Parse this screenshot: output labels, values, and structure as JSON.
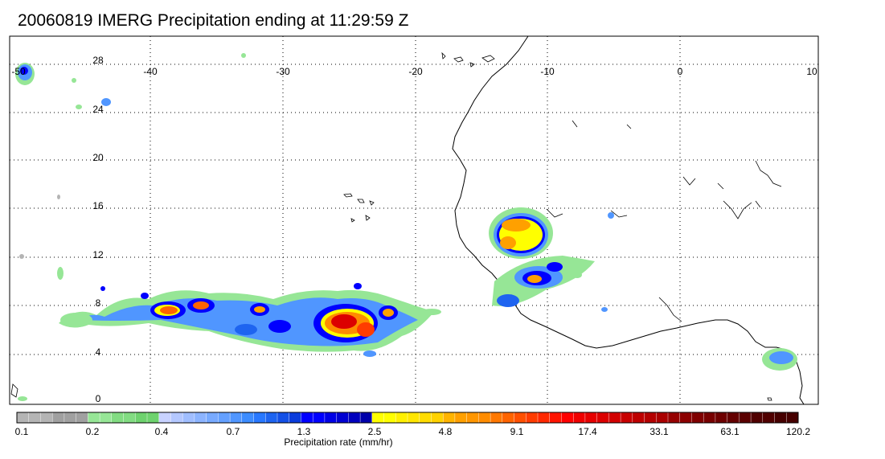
{
  "title": "20060819 IMERG Precipitation ending at 11:29:59 Z",
  "map": {
    "lon_ticks": [
      "-50",
      "-40",
      "-30",
      "-20",
      "-10",
      "0",
      "10"
    ],
    "lat_ticks": [
      "28",
      "24",
      "20",
      "16",
      "12",
      "8",
      "4",
      "0"
    ],
    "lon_range": [
      -50,
      10
    ],
    "lat_range": [
      -0.5,
      30
    ],
    "grid": true,
    "grid_style": "dotted"
  },
  "colorbar": {
    "label": "Precipitation rate (mm/hr)",
    "tick_labels": [
      "0.1",
      "0.2",
      "0.4",
      "0.7",
      "1.3",
      "2.5",
      "4.8",
      "9.1",
      "17.4",
      "33.1",
      "63.1",
      "120.2"
    ],
    "colors": [
      "#b4b4b4",
      "#b4b4b4",
      "#b4b4b4",
      "#a0a0a0",
      "#a0a0a0",
      "#a0a0a0",
      "#96e696",
      "#96e696",
      "#82dc82",
      "#82dc82",
      "#6ed26e",
      "#6ed26e",
      "#c8d2ff",
      "#b4c8ff",
      "#a0beff",
      "#8cb4ff",
      "#78aaff",
      "#64a0ff",
      "#5096ff",
      "#3c8cff",
      "#2878ff",
      "#1e64f0",
      "#1450e6",
      "#0a3cdc",
      "#0000ff",
      "#0000ff",
      "#0000e6",
      "#0000d2",
      "#0000be",
      "#0000aa",
      "#ffff00",
      "#ffff00",
      "#fff000",
      "#ffe600",
      "#ffdc00",
      "#ffd200",
      "#ffb400",
      "#ffa000",
      "#ff9600",
      "#ff8c00",
      "#ff7800",
      "#ff6400",
      "#ff5000",
      "#ff3c00",
      "#ff2800",
      "#ff1400",
      "#ff0000",
      "#f00000",
      "#e60000",
      "#dc0000",
      "#d20000",
      "#c80000",
      "#be0000",
      "#b40000",
      "#aa0000",
      "#960000",
      "#8c0000",
      "#800000",
      "#780000",
      "#6e0000",
      "#640000",
      "#5a0000",
      "#500000",
      "#500000",
      "#460000",
      "#460000"
    ]
  },
  "legend_colors": {
    "light": "#96e696",
    "moderate_blue": "#5096ff",
    "heavy_blue": "#0000ff",
    "yellow": "#ffff00",
    "orange": "#ff9600",
    "red": "#ff0000"
  }
}
